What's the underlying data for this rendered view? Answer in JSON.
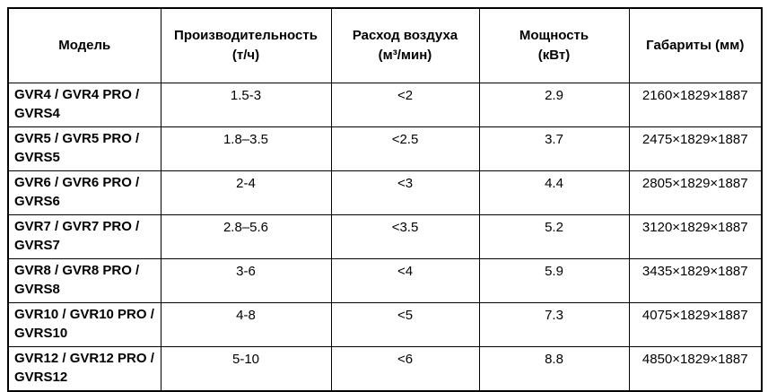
{
  "table": {
    "columns": [
      {
        "label": "Модель",
        "sub": ""
      },
      {
        "label": "Производительность",
        "sub": "(т/ч)"
      },
      {
        "label": "Расход воздуха",
        "sub": "(м³/мин)"
      },
      {
        "label": "Мощность",
        "sub": "(кВт)"
      },
      {
        "label": "Габариты (мм)",
        "sub": ""
      }
    ],
    "rows": [
      {
        "model": "GVR4 / GVR4 PRO /\nGVRS4",
        "values": [
          "1.5-3",
          "<2",
          "2.9",
          "2160×1829×1887"
        ]
      },
      {
        "model": "GVR5 / GVR5 PRO /\nGVRS5",
        "values": [
          "1.8–3.5",
          "<2.5",
          "3.7",
          "2475×1829×1887"
        ]
      },
      {
        "model": "GVR6 / GVR6 PRO /\nGVRS6",
        "values": [
          "2-4",
          "<3",
          "4.4",
          "2805×1829×1887"
        ]
      },
      {
        "model": "GVR7 / GVR7 PRO /\nGVRS7",
        "values": [
          "2.8–5.6",
          "<3.5",
          "5.2",
          "3120×1829×1887"
        ]
      },
      {
        "model": "GVR8 / GVR8 PRO /\nGVRS8",
        "values": [
          "3-6",
          "<4",
          "5.9",
          "3435×1829×1887"
        ]
      },
      {
        "model": "GVR10 / GVR10 PRO /\nGVRS10",
        "values": [
          "4-8",
          "<5",
          "7.3",
          "4075×1829×1887"
        ]
      },
      {
        "model": "GVR12 / GVR12 PRO /\nGVRS12",
        "values": [
          "5-10",
          "<6",
          "8.8",
          "4850×1829×1887"
        ]
      }
    ]
  }
}
